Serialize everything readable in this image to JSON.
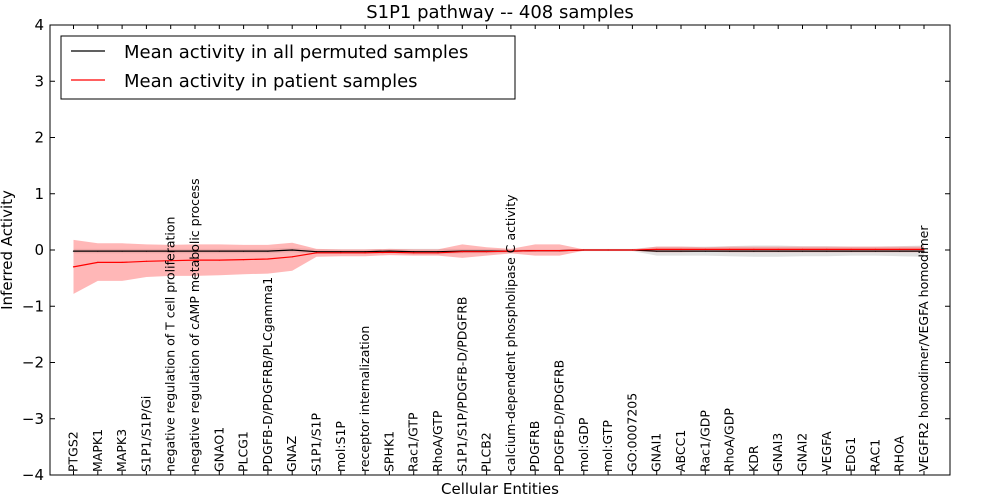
{
  "chart_data": {
    "type": "line",
    "title": "S1P1 pathway -- 408 samples",
    "xlabel": "Cellular Entities",
    "ylabel": "Inferred Activity",
    "ylim": [
      -4,
      4
    ],
    "yticks": [
      {
        "value": -4,
        "label": "−4"
      },
      {
        "value": -3,
        "label": "−3"
      },
      {
        "value": -2,
        "label": "−2"
      },
      {
        "value": -1,
        "label": "−1"
      },
      {
        "value": 0,
        "label": "0"
      },
      {
        "value": 1,
        "label": "1"
      },
      {
        "value": 2,
        "label": "2"
      },
      {
        "value": 3,
        "label": "3"
      },
      {
        "value": 4,
        "label": "4"
      }
    ],
    "grid": false,
    "legend_position": "top-left",
    "categories": [
      "PTGS2",
      "MAPK1",
      "MAPK3",
      "S1P1/S1P/Gi",
      "negative regulation of T cell proliferation",
      "negative regulation of cAMP metabolic process",
      "GNAO1",
      "PLCG1",
      "PDGFB-D/PDGFRB/PLCgamma1",
      "GNAZ",
      "S1P1/S1P",
      "mol:S1P",
      "receptor internalization",
      "SPHK1",
      "Rac1/GTP",
      "RhoA/GTP",
      "S1P1/S1P/PDGFB-D/PDGFRB",
      "PLCB2",
      "calcium-dependent phospholipase C activity",
      "PDGFRB",
      "PDGFB-D/PDGFRB",
      "mol:GDP",
      "mol:GTP",
      "GO:0007205",
      "GNAI1",
      "ABCC1",
      "Rac1/GDP",
      "RhoA/GDP",
      "KDR",
      "GNAI3",
      "GNAI2",
      "VEGFA",
      "EDG1",
      "RAC1",
      "RHOA",
      "VEGFR2 homodimer/VEGFA homodimer"
    ],
    "series": [
      {
        "name": "Mean activity in all permuted samples",
        "color": "#000000",
        "values": [
          -0.02,
          -0.02,
          -0.02,
          -0.02,
          -0.02,
          -0.02,
          -0.02,
          -0.02,
          -0.02,
          0.0,
          -0.03,
          -0.03,
          -0.03,
          -0.02,
          -0.03,
          -0.03,
          -0.02,
          -0.02,
          -0.02,
          -0.01,
          -0.01,
          0.0,
          0.0,
          0.0,
          -0.02,
          -0.02,
          -0.02,
          -0.02,
          -0.02,
          -0.02,
          -0.02,
          -0.02,
          -0.02,
          -0.02,
          -0.02,
          -0.02
        ],
        "band_lower": [
          -0.06,
          -0.06,
          -0.06,
          -0.06,
          -0.06,
          -0.06,
          -0.06,
          -0.06,
          -0.06,
          -0.04,
          -0.07,
          -0.07,
          -0.07,
          -0.06,
          -0.08,
          -0.08,
          -0.06,
          -0.06,
          -0.05,
          -0.03,
          -0.03,
          -0.02,
          -0.02,
          -0.02,
          -0.1,
          -0.1,
          -0.1,
          -0.11,
          -0.12,
          -0.12,
          -0.11,
          -0.11,
          -0.1,
          -0.1,
          -0.11,
          -0.12
        ],
        "band_upper": [
          0.02,
          0.02,
          0.02,
          0.02,
          0.02,
          0.02,
          0.02,
          0.02,
          0.02,
          0.04,
          0.01,
          0.01,
          0.01,
          0.02,
          0.02,
          0.02,
          0.02,
          0.02,
          0.01,
          0.01,
          0.01,
          0.02,
          0.02,
          0.02,
          0.06,
          0.06,
          0.06,
          0.07,
          0.08,
          0.08,
          0.07,
          0.07,
          0.06,
          0.06,
          0.07,
          0.08
        ],
        "band_color": "#c8c8c8"
      },
      {
        "name": "Mean activity in patient samples",
        "color": "#ff0000",
        "values": [
          -0.3,
          -0.22,
          -0.22,
          -0.2,
          -0.19,
          -0.18,
          -0.18,
          -0.17,
          -0.16,
          -0.12,
          -0.05,
          -0.05,
          -0.05,
          -0.04,
          -0.05,
          -0.05,
          -0.03,
          -0.03,
          -0.02,
          -0.01,
          -0.01,
          0.0,
          0.0,
          0.0,
          0.01,
          0.01,
          0.01,
          0.01,
          0.01,
          0.01,
          0.01,
          0.01,
          0.01,
          0.01,
          0.01,
          0.01
        ],
        "band_lower": [
          -0.78,
          -0.55,
          -0.55,
          -0.48,
          -0.46,
          -0.46,
          -0.45,
          -0.43,
          -0.42,
          -0.37,
          -0.12,
          -0.11,
          -0.11,
          -0.09,
          -0.1,
          -0.1,
          -0.14,
          -0.1,
          -0.06,
          -0.1,
          -0.1,
          -0.01,
          -0.01,
          -0.01,
          -0.04,
          -0.04,
          -0.03,
          -0.04,
          -0.04,
          -0.04,
          -0.04,
          -0.04,
          -0.04,
          -0.04,
          -0.04,
          -0.04
        ],
        "band_upper": [
          0.18,
          0.12,
          0.12,
          0.1,
          0.09,
          0.1,
          0.1,
          0.09,
          0.09,
          0.13,
          0.02,
          0.01,
          0.01,
          0.02,
          0.01,
          0.01,
          0.1,
          0.05,
          0.02,
          0.1,
          0.1,
          0.01,
          0.01,
          0.01,
          0.06,
          0.06,
          0.05,
          0.06,
          0.06,
          0.06,
          0.06,
          0.06,
          0.06,
          0.06,
          0.06,
          0.06
        ],
        "band_color": "#ff6f6f"
      }
    ]
  }
}
